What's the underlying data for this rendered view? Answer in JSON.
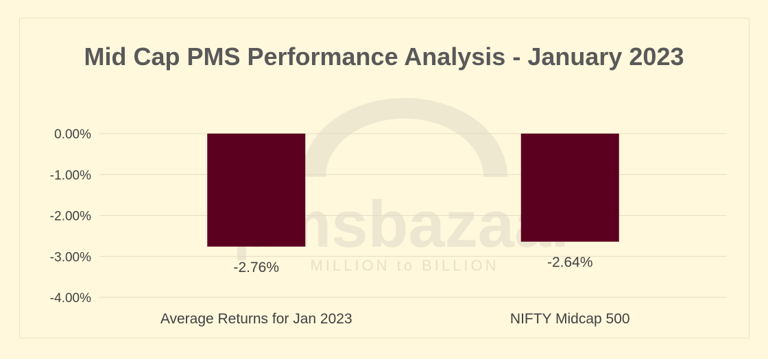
{
  "chart_data": {
    "type": "bar",
    "title": "Mid Cap PMS Performance Analysis - January 2023",
    "categories": [
      "Average Returns for Jan 2023",
      "NIFTY Midcap 500"
    ],
    "values": [
      -2.76,
      -2.64
    ],
    "data_labels": [
      "-2.76%",
      "-2.64%"
    ],
    "y_ticks": [
      "0.00%",
      "-1.00%",
      "-2.00%",
      "-3.00%",
      "-4.00%"
    ],
    "y_tick_values": [
      0,
      -1,
      -2,
      -3,
      -4
    ],
    "ylim": [
      -4,
      0
    ],
    "xlabel": "",
    "ylabel": "",
    "grid": true,
    "bar_color": "#5c0020",
    "background_color": "#fff8dc"
  },
  "watermark": {
    "brand": "pmsbazaar",
    "tagline": "MILLION to BILLION"
  }
}
